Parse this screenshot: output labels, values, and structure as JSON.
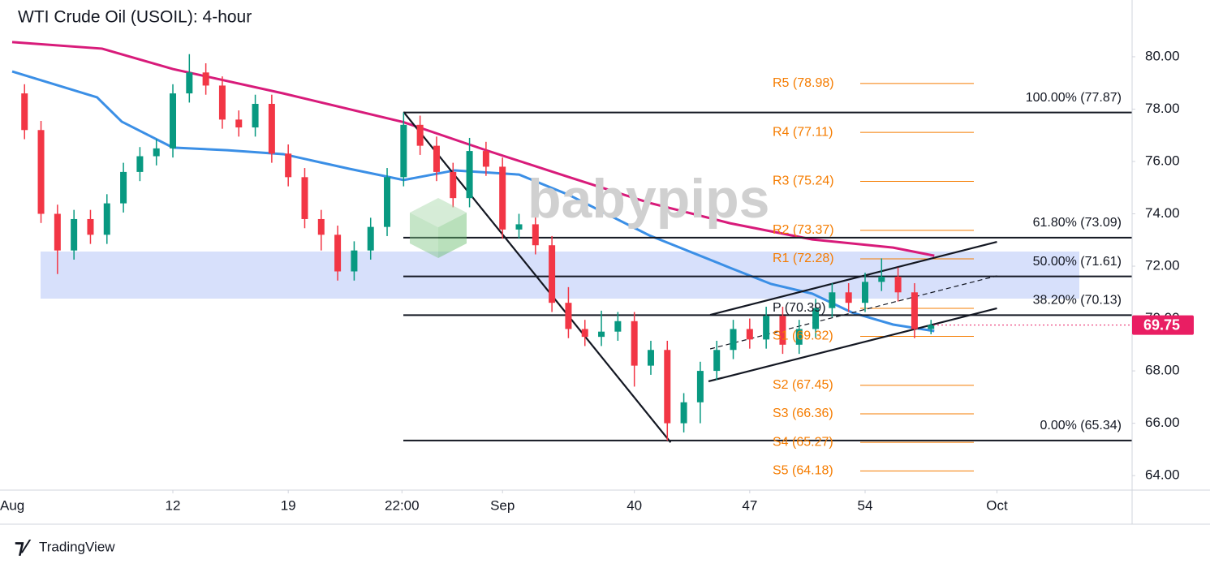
{
  "chart_data": {
    "type": "candlestick",
    "title": "WTI Crude Oil (USOIL): 4-hour",
    "watermark": "babypips",
    "footer": "TradingView",
    "up_color": "#089981",
    "down_color": "#f23645",
    "x": [
      3,
      4,
      5,
      6,
      7,
      8,
      9,
      10,
      11,
      12,
      13,
      14,
      15,
      16,
      17,
      18,
      19,
      20,
      21,
      22,
      23,
      24,
      25,
      26,
      27,
      28,
      29,
      30,
      31,
      32,
      33,
      34,
      35,
      36,
      37,
      38,
      39,
      40,
      41,
      42,
      43,
      44,
      45,
      46,
      47,
      48,
      49,
      50,
      51,
      52,
      53,
      54,
      55,
      56,
      57,
      58
    ],
    "open": [
      78.6,
      77.2,
      74.0,
      72.6,
      73.8,
      73.2,
      74.4,
      75.6,
      76.2,
      76.5,
      78.6,
      79.4,
      78.9,
      77.6,
      77.3,
      78.2,
      76.3,
      75.4,
      73.8,
      73.2,
      71.8,
      72.6,
      73.5,
      75.4,
      77.4,
      76.6,
      75.6,
      74.6,
      76.4,
      75.8,
      73.4,
      73.6,
      72.8,
      70.6,
      69.6,
      69.3,
      69.5,
      69.9,
      68.2,
      68.8,
      66.0,
      66.8,
      68.0,
      68.8,
      69.6,
      69.2,
      70.1,
      69.0,
      69.6,
      70.4,
      71.0,
      70.6,
      71.4,
      71.6,
      71.0,
      69.6
    ],
    "high": [
      78.95,
      77.55,
      74.35,
      74.15,
      74.15,
      74.75,
      75.95,
      76.55,
      76.85,
      78.95,
      80.1,
      79.75,
      79.25,
      77.95,
      78.55,
      78.55,
      76.65,
      75.75,
      74.15,
      73.55,
      72.95,
      73.85,
      75.75,
      77.87,
      77.75,
      76.95,
      75.95,
      76.9,
      76.75,
      76.15,
      74.0,
      74.05,
      73.15,
      71.2,
      69.95,
      70.3,
      70.25,
      70.25,
      69.15,
      69.15,
      67.15,
      68.35,
      69.15,
      69.95,
      70.0,
      70.45,
      70.45,
      69.95,
      70.75,
      71.35,
      71.35,
      71.75,
      72.3,
      71.95,
      71.35,
      69.95
    ],
    "low": [
      76.85,
      73.65,
      71.7,
      72.25,
      72.85,
      72.85,
      74.05,
      75.25,
      75.85,
      76.15,
      78.25,
      78.55,
      77.25,
      76.95,
      76.95,
      75.95,
      75.05,
      73.45,
      72.6,
      71.45,
      71.45,
      72.25,
      73.15,
      75.05,
      76.25,
      75.25,
      74.25,
      74.25,
      75.45,
      73.05,
      73.05,
      72.45,
      70.25,
      69.25,
      68.95,
      68.95,
      69.15,
      67.4,
      67.85,
      65.34,
      65.65,
      66.0,
      67.65,
      68.45,
      68.85,
      68.85,
      68.65,
      68.65,
      69.25,
      70.05,
      70.25,
      70.25,
      71.05,
      70.65,
      69.25,
      69.4
    ],
    "close": [
      77.2,
      74.0,
      72.6,
      73.8,
      73.2,
      74.4,
      75.6,
      76.2,
      76.5,
      78.6,
      79.4,
      78.9,
      77.6,
      77.3,
      78.2,
      76.3,
      75.4,
      73.8,
      73.2,
      71.8,
      72.6,
      73.5,
      75.4,
      77.4,
      76.6,
      75.6,
      74.6,
      76.4,
      75.8,
      73.4,
      73.6,
      72.8,
      70.6,
      69.6,
      69.3,
      69.5,
      69.9,
      68.2,
      68.8,
      66.0,
      66.8,
      68.0,
      68.8,
      69.6,
      69.2,
      70.1,
      69.0,
      69.6,
      70.4,
      71.0,
      70.6,
      71.4,
      71.6,
      71.0,
      69.6,
      69.75
    ],
    "series": [
      {
        "color": "#d81b7a",
        "x": [
          2.25,
          7.7,
          12,
          18.7,
          26,
          31,
          36,
          40.9,
          45.8,
          50.8,
          55.7,
          58.2
        ],
        "values": [
          80.56,
          80.31,
          79.53,
          78.6,
          77.5,
          76.43,
          75.41,
          74.42,
          73.64,
          73.02,
          72.71,
          72.4
        ]
      },
      {
        "color": "#3b8fe6",
        "x": [
          2.25,
          7.4,
          8.9,
          12,
          15.3,
          18.7,
          22.7,
          26,
          29.1,
          33,
          36,
          40.9,
          45.8,
          48.3,
          50.8,
          53.2,
          55.7,
          58.2
        ],
        "values": [
          79.44,
          78.45,
          77.52,
          76.53,
          76.43,
          76.28,
          75.72,
          75.29,
          75.66,
          75.5,
          74.73,
          73.18,
          71.94,
          71.32,
          70.95,
          70.23,
          69.77,
          69.52
        ]
      }
    ],
    "zone": [
      70.76,
      72.56
    ],
    "trendlines": [
      {
        "x": [
          26,
          42.2
        ],
        "y": [
          77.89,
          65.27
        ],
        "dashed": false
      },
      {
        "x": [
          44.6,
          62
        ],
        "y": [
          70.14,
          72.93
        ],
        "dashed": false
      },
      {
        "x": [
          44.5,
          62
        ],
        "y": [
          67.6,
          70.39
        ],
        "dashed": false
      },
      {
        "x": [
          44.6,
          62
        ],
        "y": [
          68.84,
          71.63
        ],
        "dashed": true
      }
    ],
    "fib": [
      {
        "label": "100.00% (77.87)",
        "value": 77.87
      },
      {
        "label": "61.80% (73.09)",
        "value": 73.09
      },
      {
        "label": "50.00% (71.61)",
        "value": 71.61
      },
      {
        "label": "38.20% (70.13)",
        "value": 70.13
      },
      {
        "label": "0.00% (65.34)",
        "value": 65.34
      }
    ],
    "pivots": [
      {
        "label": "R5 (78.98)",
        "value": 78.98
      },
      {
        "label": "R4 (77.11)",
        "value": 77.11
      },
      {
        "label": "R3 (75.24)",
        "value": 75.24
      },
      {
        "label": "R2 (73.37)",
        "value": 73.37
      },
      {
        "label": "R1 (72.28)",
        "value": 72.28
      },
      {
        "label": "P (70.39)",
        "value": 70.39
      },
      {
        "label": "S1 (69.32)",
        "value": 69.32
      },
      {
        "label": "S2 (67.45)",
        "value": 67.45
      },
      {
        "label": "S3 (66.36)",
        "value": 66.36
      },
      {
        "label": "S4 (65.27)",
        "value": 65.27
      },
      {
        "label": "S5 (64.18)",
        "value": 64.18
      }
    ],
    "last_price": {
      "value": 69.75,
      "label": "69.75",
      "color": "#e91e63"
    },
    "xlim": [
      2.25,
      70.2
    ],
    "ylim": [
      63.57,
      81.92
    ],
    "xticks": [
      {
        "value": 1,
        "label": "Aug"
      },
      12,
      19,
      {
        "value": 25.9,
        "label": "22:00"
      },
      {
        "value": 32,
        "label": "Sep"
      },
      40,
      47,
      54,
      {
        "value": 62,
        "label": "Oct"
      }
    ],
    "yticks": [
      {
        "value": 64,
        "label": "64.00"
      },
      {
        "value": 66,
        "label": "66.00"
      },
      {
        "value": 68,
        "label": "68.00"
      },
      {
        "value": 70,
        "label": "70.00"
      },
      {
        "value": 72,
        "label": "72.00"
      },
      {
        "value": 74,
        "label": "74.00"
      },
      {
        "value": 76,
        "label": "76.00"
      },
      {
        "value": 78,
        "label": "78.00"
      },
      {
        "value": 80,
        "label": "80.00"
      }
    ],
    "grid": false
  }
}
